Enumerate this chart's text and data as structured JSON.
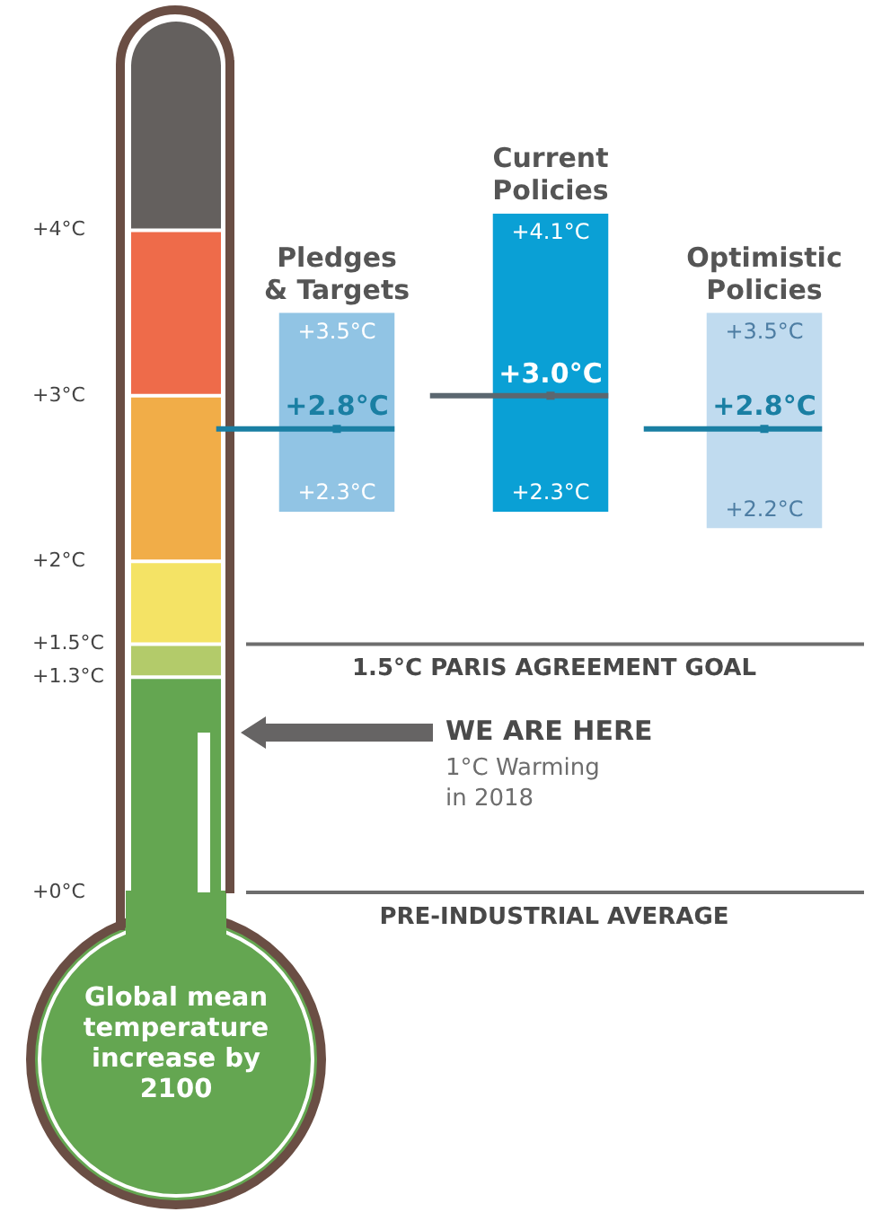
{
  "chart_data": {
    "type": "bar",
    "ylabel": "Global mean temperature increase by 2100",
    "categories": [
      "Pledges & Targets",
      "Current Policies",
      "Optimistic Policies"
    ],
    "series": [
      {
        "colors": [
          "#91c4e4",
          "#0aa0d5",
          "#c0dbef"
        ],
        "values": [
          1.2,
          1.8,
          1.3
        ],
        "base": [
          2.3,
          2.3,
          2.2
        ]
      },
      {
        "type": "scatter",
        "x": [
          "Pledges & Targets",
          "Current Policies",
          "Optimistic Policies"
        ],
        "colors": [
          "#1a7fa3",
          "#5b6770",
          "#1a7fa3"
        ],
        "values": [
          2.8,
          3.0,
          2.8
        ],
        "value_labels": [
          "+2.8°C",
          "+3.0°C",
          "+2.8°C"
        ]
      }
    ],
    "ylim": [
      0,
      5
    ],
    "yticks": [
      {
        "value": 0,
        "label": "+0°C"
      },
      {
        "value": 1.3,
        "label": "+1.3°C"
      },
      {
        "value": 1.5,
        "label": "+1.5°C"
      },
      {
        "value": 2,
        "label": "+2°C"
      },
      {
        "value": 3,
        "label": "+3°C"
      },
      {
        "value": 4,
        "label": "+4°C"
      }
    ],
    "ref_lines": [
      {
        "axis": "y",
        "value": 1.5,
        "label": "1.5°C PARIS AGREEMENT GOAL",
        "color": "#6d6d6d"
      },
      {
        "axis": "y",
        "value": 0,
        "label": "PRE-INDUSTRIAL AVERAGE",
        "color": "#6d6d6d"
      }
    ],
    "annotations": [
      "WE ARE HERE",
      "1°C Warming in 2018",
      {
        "text": "+3.5°C",
        "x": "Pledges & Targets",
        "y": 3.5
      },
      {
        "text": "+2.3°C",
        "x": "Pledges & Targets",
        "y": 2.3
      },
      {
        "text": "+4.1°C",
        "x": "Current Policies",
        "y": 4.1
      },
      {
        "text": "+2.3°C",
        "x": "Current Policies",
        "y": 2.3
      },
      {
        "text": "+3.5°C",
        "x": "Optimistic Policies",
        "y": 3.5
      },
      {
        "text": "+2.2°C",
        "x": "Optimistic Policies",
        "y": 2.2
      }
    ],
    "grid": false,
    "legend": false
  }
}
